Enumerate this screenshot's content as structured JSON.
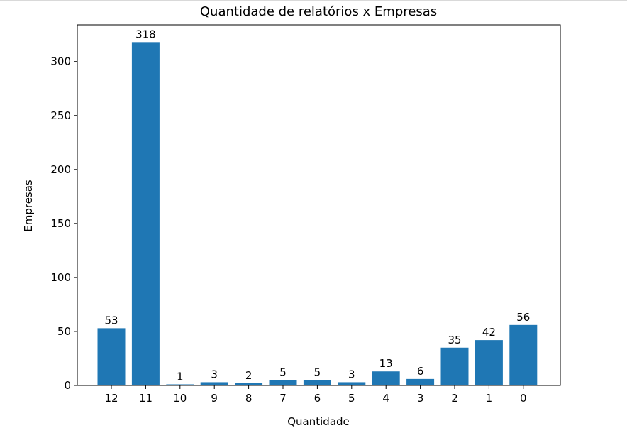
{
  "chart_data": {
    "type": "bar",
    "title": "Quantidade de relatórios x Empresas",
    "xlabel": "Quantidade",
    "ylabel": "Empresas",
    "categories": [
      "12",
      "11",
      "10",
      "9",
      "8",
      "7",
      "6",
      "5",
      "4",
      "3",
      "2",
      "1",
      "0"
    ],
    "values": [
      53,
      318,
      1,
      3,
      2,
      5,
      5,
      3,
      13,
      6,
      35,
      42,
      56
    ],
    "data_labels": [
      "53",
      "318",
      "1",
      "3",
      "2",
      "5",
      "5",
      "3",
      "13",
      "6",
      "35",
      "42",
      "56"
    ],
    "ylim": [
      0,
      334
    ],
    "yticks": [
      0,
      50,
      100,
      150,
      200,
      250,
      300
    ],
    "grid": false,
    "legend": "none",
    "bar_color": "#1f77b4"
  }
}
